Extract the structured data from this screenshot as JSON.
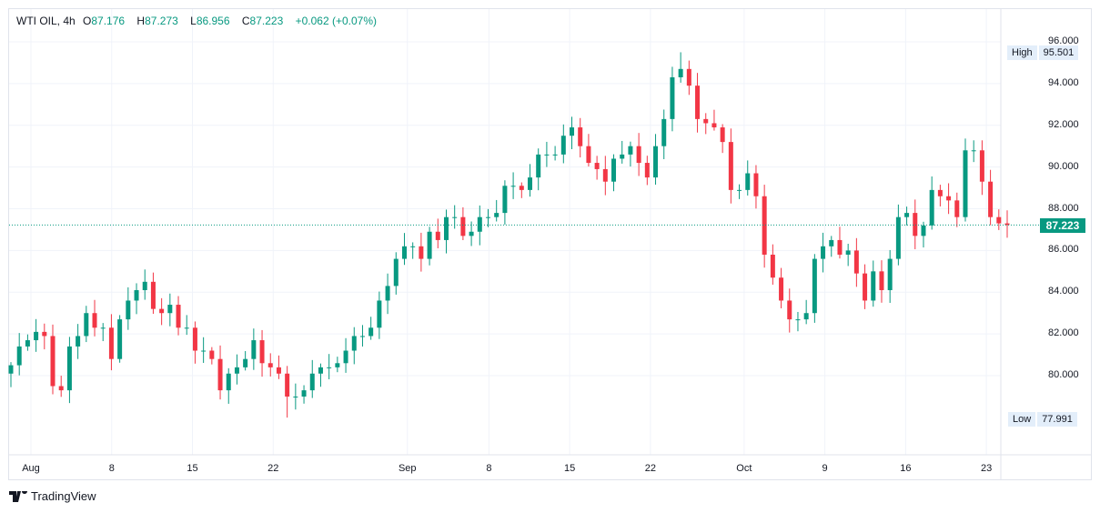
{
  "header": {
    "symbol": "WTI OIL, 4h",
    "o_label": "O",
    "o": "87.176",
    "h_label": "H",
    "h": "87.273",
    "l_label": "L",
    "l": "86.956",
    "c_label": "C",
    "c": "87.223",
    "change": "+0.062 (+0.07%)"
  },
  "branding": "TradingView",
  "chart_data": {
    "type": "candlestick",
    "title": "WTI OIL, 4h",
    "ylim": [
      77.4,
      96.9
    ],
    "yticks": [
      "96.000",
      "94.000",
      "92.000",
      "90.000",
      "88.000",
      "86.000",
      "84.000",
      "82.000",
      "80.000"
    ],
    "ytick_values": [
      96,
      94,
      92,
      90,
      88,
      86,
      84,
      82,
      80
    ],
    "xlabel_unit": "trading days since Jul 31",
    "xlim": [
      0,
      62
    ],
    "xticks": [
      {
        "label": "Aug",
        "t": 1.24
      },
      {
        "label": "8",
        "t": 6.24
      },
      {
        "label": "15",
        "t": 11.24
      },
      {
        "label": "22",
        "t": 16.24
      },
      {
        "label": "Sep",
        "t": 24.55
      },
      {
        "label": "8",
        "t": 29.6
      },
      {
        "label": "15",
        "t": 34.6
      },
      {
        "label": "22",
        "t": 39.6
      },
      {
        "label": "Oct",
        "t": 45.4
      },
      {
        "label": "9",
        "t": 50.4
      },
      {
        "label": "16",
        "t": 55.4
      },
      {
        "label": "23",
        "t": 60.4
      }
    ],
    "high_label": "High",
    "high": "95.501",
    "high_value": 95.501,
    "low_label": "Low",
    "low": "77.991",
    "low_value": 77.991,
    "last_price": "87.223",
    "last_value": 87.223,
    "up_color": "#089981",
    "down_color": "#f23645",
    "closes": [
      80.5,
      81.4,
      81.7,
      82.1,
      81.9,
      79.5,
      79.3,
      81.4,
      81.9,
      83.0,
      82.3,
      82.3,
      80.8,
      82.7,
      83.6,
      84.1,
      84.5,
      83.2,
      83.0,
      83.4,
      82.3,
      82.3,
      81.2,
      81.2,
      80.8,
      79.3,
      80.1,
      80.4,
      80.8,
      81.7,
      80.6,
      80.4,
      80.1,
      79.0,
      79.0,
      79.3,
      80.1,
      80.4,
      80.4,
      80.6,
      81.2,
      81.9,
      81.9,
      82.3,
      83.6,
      84.3,
      85.6,
      86.2,
      86.2,
      85.6,
      86.9,
      86.5,
      87.6,
      87.6,
      86.7,
      86.9,
      87.6,
      87.6,
      87.8,
      89.1,
      89.1,
      88.9,
      89.5,
      90.6,
      90.6,
      90.6,
      91.5,
      91.9,
      91.0,
      90.2,
      89.9,
      89.3,
      90.4,
      90.6,
      91.0,
      90.2,
      89.5,
      91.0,
      92.3,
      94.3,
      94.7,
      93.9,
      92.3,
      92.1,
      91.9,
      91.2,
      88.9,
      88.9,
      89.7,
      88.6,
      85.8,
      84.7,
      83.6,
      82.7,
      82.7,
      83.0,
      85.6,
      86.2,
      86.5,
      85.8,
      86.0,
      84.9,
      83.6,
      85.0,
      84.1,
      85.6,
      87.6,
      87.8,
      86.7,
      87.2,
      88.9,
      88.6,
      88.4,
      87.6,
      90.8,
      90.8,
      89.3,
      87.6,
      87.3,
      87.223
    ]
  }
}
